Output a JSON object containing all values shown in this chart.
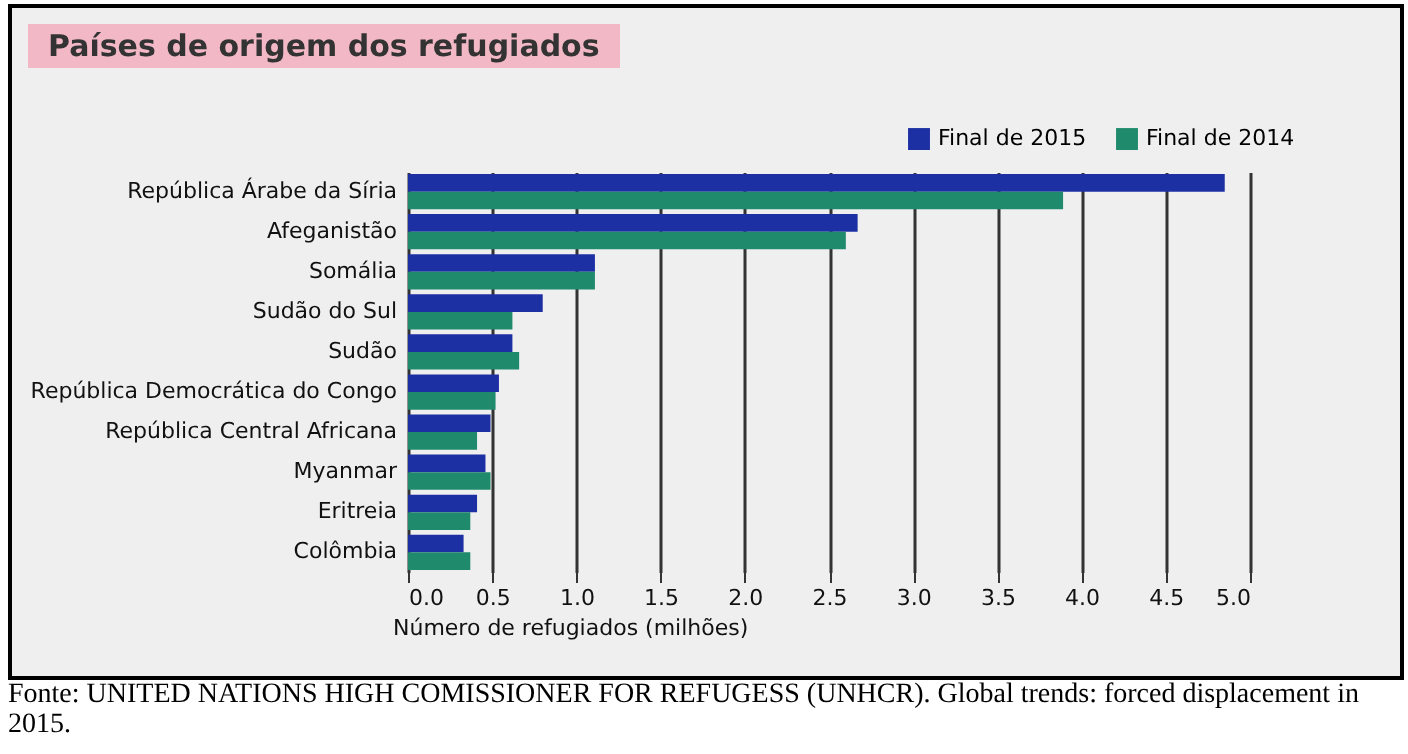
{
  "chart_data": {
    "type": "bar",
    "orientation": "horizontal",
    "title": "Países de origem dos refugiados",
    "categories": [
      "República Árabe da Síria",
      "Afeganistão",
      "Somália",
      "Sudão do Sul",
      "Sudão",
      "República Democrática do Congo",
      "República Central Africana",
      "Myanmar",
      "Eritreia",
      "Colômbia"
    ],
    "series": [
      {
        "name": "Final de 2015",
        "color": "#1c2fa3",
        "values": [
          4.85,
          2.67,
          1.11,
          0.8,
          0.62,
          0.54,
          0.49,
          0.46,
          0.41,
          0.33
        ]
      },
      {
        "name": "Final de 2014",
        "color": "#1f8a6c",
        "values": [
          3.89,
          2.6,
          1.11,
          0.62,
          0.66,
          0.52,
          0.41,
          0.49,
          0.37,
          0.37
        ]
      }
    ],
    "xlabel": "Número de refugiados (milhões)",
    "xlim": [
      0,
      5
    ],
    "xticks": [
      {
        "value": 0,
        "label": "0.0"
      },
      {
        "value": 0.5,
        "label": "0.5"
      },
      {
        "value": 1,
        "label": "1.0"
      },
      {
        "value": 1.5,
        "label": "1.5"
      },
      {
        "value": 2,
        "label": "2.0"
      },
      {
        "value": 2.5,
        "label": "2.5"
      },
      {
        "value": 3,
        "label": "3.0"
      },
      {
        "value": 3.5,
        "label": "3.5"
      },
      {
        "value": 4,
        "label": "4.0"
      },
      {
        "value": 4.5,
        "label": "4.5"
      },
      {
        "value": 5,
        "label": "5.0"
      }
    ],
    "grid": "x",
    "legend": "top right",
    "annotations": [
      "Fonte: UNITED NATIONS HIGH COMISSIONER FOR REFUGESS (UNHCR). Global trends: forced displacement in 2015."
    ]
  }
}
